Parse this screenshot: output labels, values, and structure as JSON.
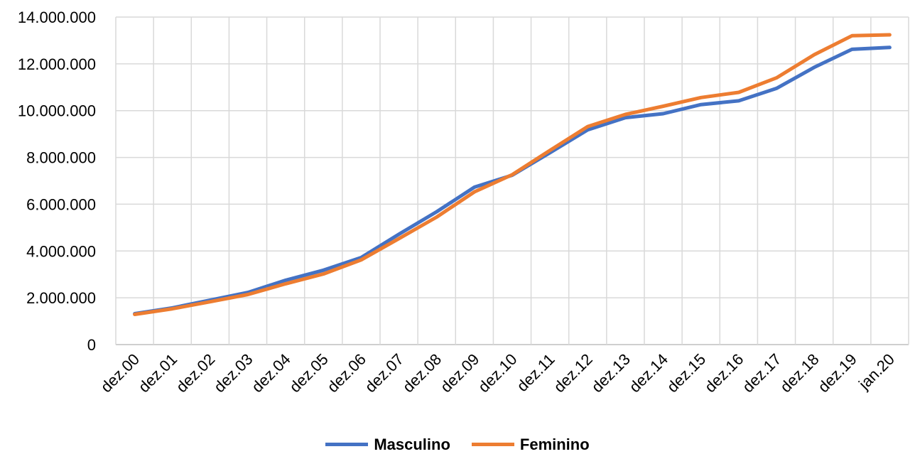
{
  "chart_data": {
    "type": "line",
    "title": "",
    "xlabel": "",
    "ylabel": "",
    "categories": [
      "dez.00",
      "dez.01",
      "dez.02",
      "dez.03",
      "dez.04",
      "dez.05",
      "dez.06",
      "dez.07",
      "dez.08",
      "dez.09",
      "dez.10",
      "dez.11",
      "dez.12",
      "dez.13",
      "dez.14",
      "dez.15",
      "dez.16",
      "dez.17",
      "dez.18",
      "dez.19",
      "jan.20"
    ],
    "ylim": [
      0,
      14000000
    ],
    "y_ticks": [
      0,
      2000000,
      4000000,
      6000000,
      8000000,
      10000000,
      12000000,
      14000000
    ],
    "y_tick_labels": [
      "0",
      "2.000.000",
      "4.000.000",
      "6.000.000",
      "8.000.000",
      "10.000.000",
      "12.000.000",
      "14.000.000"
    ],
    "grid": true,
    "legend_position": "bottom",
    "series": [
      {
        "name": "Masculino",
        "color": "#4472C4",
        "values": [
          1320000,
          1570000,
          1900000,
          2230000,
          2750000,
          3180000,
          3720000,
          4720000,
          5680000,
          6730000,
          7240000,
          8200000,
          9180000,
          9700000,
          9870000,
          10260000,
          10420000,
          10950000,
          11850000,
          12620000,
          12700000
        ]
      },
      {
        "name": "Feminino",
        "color": "#ED7D31",
        "values": [
          1290000,
          1530000,
          1830000,
          2140000,
          2600000,
          3020000,
          3620000,
          4530000,
          5450000,
          6530000,
          7260000,
          8300000,
          9320000,
          9840000,
          10190000,
          10560000,
          10780000,
          11400000,
          12390000,
          13200000,
          13240000
        ]
      }
    ]
  }
}
